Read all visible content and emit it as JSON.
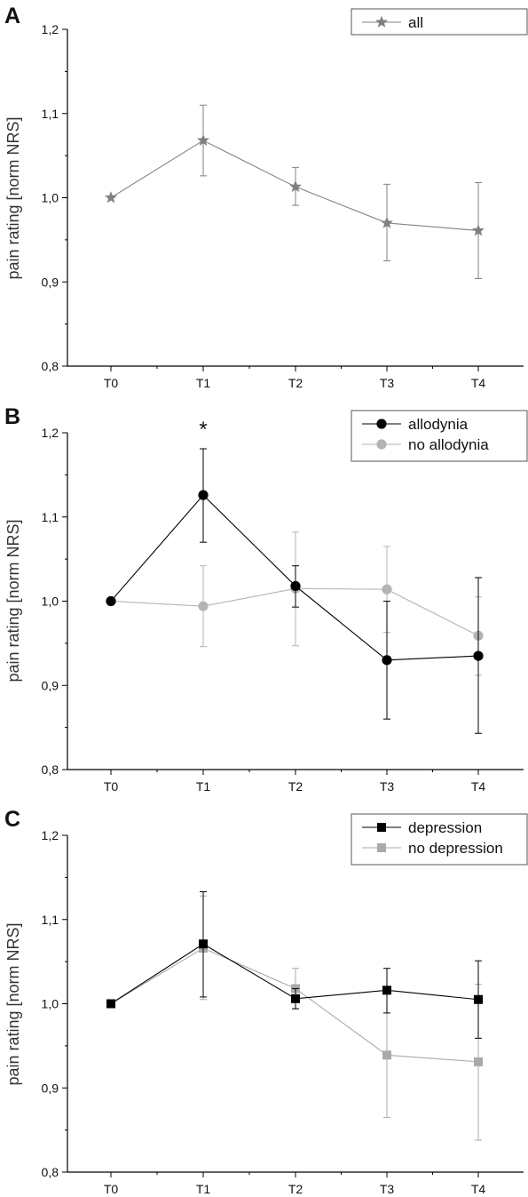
{
  "chart_data": [
    {
      "panel": "A",
      "type": "line",
      "categories": [
        "T0",
        "T1",
        "T2",
        "T3",
        "T4"
      ],
      "ylabel": "pain rating [norm NRS]",
      "ylim": [
        0.8,
        1.2
      ],
      "yticks": [
        "0,8",
        "0,9",
        "1,0",
        "1,1",
        "1,2"
      ],
      "legend_position": "top-right",
      "series": [
        {
          "name": "all",
          "marker": "star",
          "color": "#808080",
          "fill": "#808080",
          "values": [
            1.0,
            1.068,
            1.013,
            0.97,
            0.961
          ],
          "err_high": [
            1.0,
            1.11,
            1.036,
            1.016,
            1.018
          ],
          "err_low": [
            1.0,
            1.026,
            0.991,
            0.925,
            0.904
          ]
        }
      ]
    },
    {
      "panel": "B",
      "type": "line",
      "categories": [
        "T0",
        "T1",
        "T2",
        "T3",
        "T4"
      ],
      "ylabel": "pain rating [norm NRS]",
      "ylim": [
        0.8,
        1.2
      ],
      "yticks": [
        "0,8",
        "0,9",
        "1,0",
        "1,1",
        "1,2"
      ],
      "legend_position": "top-right",
      "annotation": {
        "text": "*",
        "category": "T1",
        "y": 1.2
      },
      "series": [
        {
          "name": "allodynia",
          "marker": "circle",
          "color": "#000000",
          "fill": "#000000",
          "values": [
            1.0,
            1.126,
            1.018,
            0.93,
            0.935
          ],
          "err_high": [
            1.0,
            1.181,
            1.042,
            1.0,
            1.028
          ],
          "err_low": [
            1.0,
            1.07,
            0.993,
            0.86,
            0.843
          ]
        },
        {
          "name": "no allodynia",
          "marker": "circle",
          "color": "#b4b4b4",
          "fill": "#b4b4b4",
          "values": [
            1.0,
            0.994,
            1.015,
            1.014,
            0.959
          ],
          "err_high": [
            1.0,
            1.042,
            1.082,
            1.065,
            1.005
          ],
          "err_low": [
            1.0,
            0.946,
            0.947,
            0.963,
            0.912
          ]
        }
      ]
    },
    {
      "panel": "C",
      "type": "line",
      "categories": [
        "T0",
        "T1",
        "T2",
        "T3",
        "T4"
      ],
      "ylabel": "pain rating [norm NRS]",
      "ylim": [
        0.8,
        1.2
      ],
      "yticks": [
        "0,8",
        "0,9",
        "1,0",
        "1,1",
        "1,2"
      ],
      "legend_position": "top-right",
      "series": [
        {
          "name": "depression",
          "marker": "square",
          "color": "#000000",
          "fill": "#000000",
          "values": [
            1.0,
            1.071,
            1.006,
            1.016,
            1.005
          ],
          "err_high": [
            1.0,
            1.133,
            1.018,
            1.042,
            1.051
          ],
          "err_low": [
            1.0,
            1.008,
            0.994,
            0.989,
            0.959
          ]
        },
        {
          "name": "no depression",
          "marker": "square-open",
          "color": "#aaaaaa",
          "fill": "#aaaaaa",
          "values": [
            1.0,
            1.066,
            1.018,
            0.939,
            0.931
          ],
          "err_high": [
            1.0,
            1.128,
            1.042,
            1.013,
            1.023
          ],
          "err_low": [
            1.0,
            1.005,
            0.994,
            0.865,
            0.838
          ]
        }
      ]
    }
  ]
}
